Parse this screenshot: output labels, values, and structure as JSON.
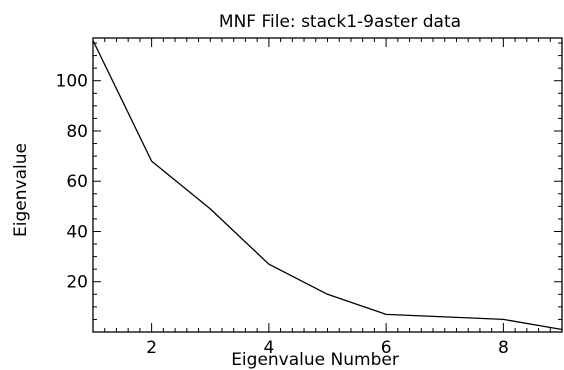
{
  "chart_data": {
    "type": "line",
    "title": "MNF File: stack1-9aster data",
    "xlabel": "Eigenvalue Number",
    "ylabel": "Eigenvalue",
    "xlim": [
      1,
      9
    ],
    "ylim": [
      0,
      117
    ],
    "x_ticks": [
      2,
      4,
      6,
      8
    ],
    "y_ticks": [
      20,
      40,
      60,
      80,
      100
    ],
    "grid": false,
    "series": [
      {
        "x": [
          1,
          2,
          3,
          4,
          5,
          6,
          7,
          8,
          9
        ],
        "values": [
          116,
          68,
          49,
          27,
          15,
          7,
          6,
          5,
          1
        ]
      }
    ],
    "colors": {
      "line": "#000000",
      "axes": "#000000",
      "background": "#ffffff"
    }
  }
}
